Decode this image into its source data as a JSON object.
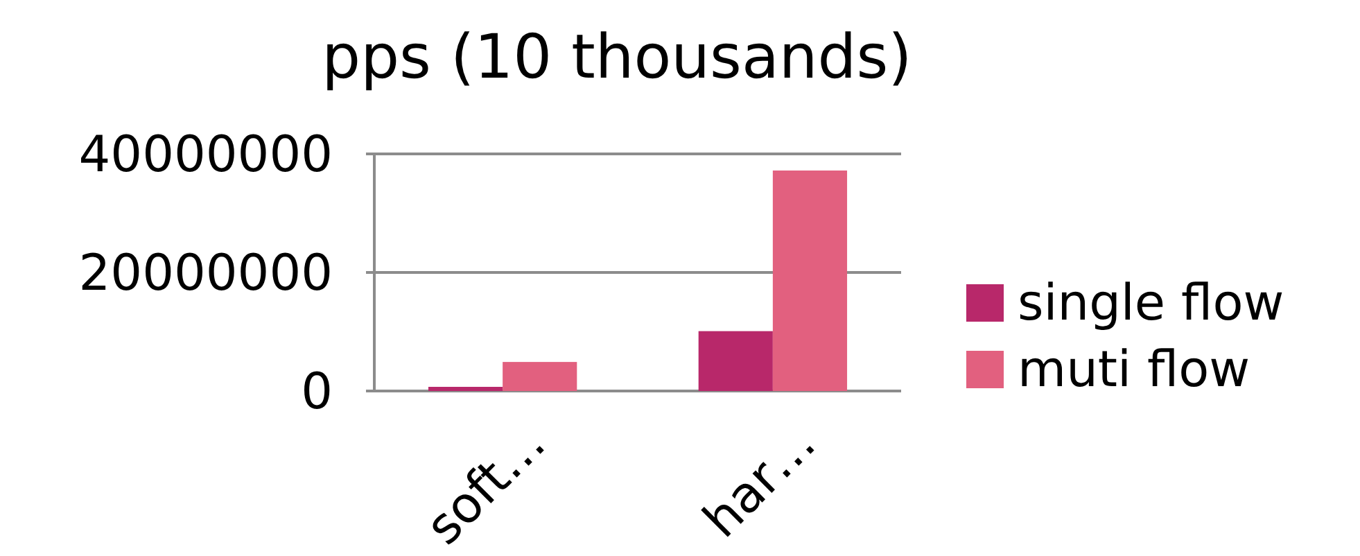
{
  "chart_data": {
    "type": "bar",
    "title": "pps (10 thousands)",
    "categories": [
      "soft…",
      "har…"
    ],
    "series": [
      {
        "name": "single flow",
        "color": "#b8286a",
        "values": [
          700000,
          10100000
        ]
      },
      {
        "name": "muti flow",
        "color": "#e2607f",
        "values": [
          4900000,
          37200000
        ]
      }
    ],
    "ylim": [
      0,
      40000000
    ],
    "yticks": [
      0,
      20000000,
      40000000
    ],
    "grid": "y",
    "legend": "right"
  }
}
